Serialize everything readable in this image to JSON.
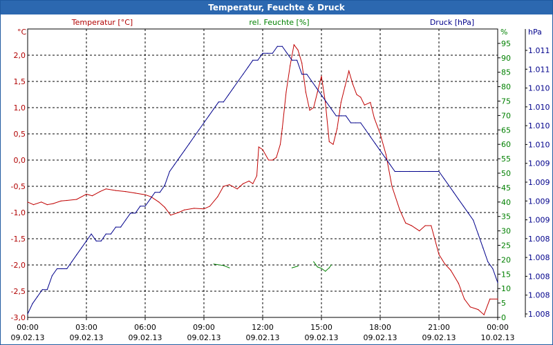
{
  "chart_data": {
    "type": "line",
    "title": "Temperatur, Feuchte & Druck",
    "axes": {
      "left": {
        "unit": "°C",
        "label": "Temperatur [°C]",
        "color": "#b00000",
        "range": [
          -3.0,
          2.5
        ],
        "ticks": [
          "2,0",
          "1,5",
          "1,0",
          "0,5",
          "0,0",
          "-0,5",
          "-1,0",
          "-1,5",
          "-2,0",
          "-2,5",
          "-3,0"
        ]
      },
      "mid": {
        "unit": "%",
        "label": "rel. Feuchte [%]",
        "color": "#008000",
        "range": [
          0,
          100
        ],
        "ticks": [
          "95",
          "90",
          "85",
          "80",
          "75",
          "70",
          "65",
          "60",
          "55",
          "50",
          "45",
          "40",
          "35",
          "30",
          "25",
          "20",
          "15",
          "10",
          "5",
          "0"
        ]
      },
      "right": {
        "unit": "hPa",
        "label": "Druck [hPa]",
        "color": "#00008b",
        "ticks": [
          "1.011",
          "1.011",
          "1.010",
          "1.010",
          "1.010",
          "1.010",
          "1.009",
          "1.009",
          "1.009",
          "1.009",
          "1.008",
          "1.008",
          "1.008",
          "1.008",
          "1.008"
        ]
      }
    },
    "x_ticks": [
      {
        "time": "00:00",
        "date": "09.02.13"
      },
      {
        "time": "03:00",
        "date": "09.02.13"
      },
      {
        "time": "06:00",
        "date": "09.02.13"
      },
      {
        "time": "09:00",
        "date": "09.02.13"
      },
      {
        "time": "12:00",
        "date": "09.02.13"
      },
      {
        "time": "15:00",
        "date": "09.02.13"
      },
      {
        "time": "18:00",
        "date": "09.02.13"
      },
      {
        "time": "21:00",
        "date": "09.02.13"
      },
      {
        "time": "00:00",
        "date": "10.02.13"
      }
    ],
    "x_range_hours": [
      0,
      24
    ],
    "grid": true,
    "series": [
      {
        "name": "Temperatur",
        "color": "#c00000",
        "unit": "°C",
        "x": [
          0,
          0.3,
          0.7,
          1.0,
          1.3,
          1.7,
          2.0,
          2.5,
          3.0,
          3.3,
          3.7,
          4.0,
          4.5,
          5.0,
          5.5,
          6.0,
          6.3,
          6.7,
          7.0,
          7.3,
          7.7,
          8.0,
          8.5,
          9.0,
          9.3,
          9.7,
          10.0,
          10.3,
          10.7,
          11.0,
          11.3,
          11.5,
          11.7,
          11.8,
          12.0,
          12.3,
          12.5,
          12.7,
          12.9,
          13.0,
          13.2,
          13.4,
          13.6,
          13.8,
          14.0,
          14.2,
          14.4,
          14.6,
          14.8,
          15.0,
          15.2,
          15.4,
          15.6,
          15.8,
          16.0,
          16.2,
          16.4,
          16.6,
          16.8,
          17.0,
          17.2,
          17.5,
          17.7,
          18.0,
          18.3,
          18.6,
          19.0,
          19.3,
          19.6,
          20.0,
          20.3,
          20.6,
          21.0,
          21.3,
          21.6,
          22.0,
          22.3,
          22.6,
          23.0,
          23.3,
          23.6,
          24.0
        ],
        "values": [
          -0.8,
          -0.85,
          -0.8,
          -0.85,
          -0.83,
          -0.78,
          -0.77,
          -0.75,
          -0.65,
          -0.68,
          -0.6,
          -0.55,
          -0.58,
          -0.6,
          -0.63,
          -0.66,
          -0.7,
          -0.8,
          -0.9,
          -1.05,
          -1.0,
          -0.95,
          -0.92,
          -0.93,
          -0.88,
          -0.7,
          -0.5,
          -0.47,
          -0.55,
          -0.45,
          -0.4,
          -0.45,
          -0.3,
          0.25,
          0.2,
          0.0,
          0.0,
          0.05,
          0.3,
          0.6,
          1.3,
          1.8,
          2.2,
          2.1,
          1.85,
          1.3,
          0.95,
          1.0,
          1.3,
          1.6,
          1.1,
          0.35,
          0.3,
          0.6,
          1.1,
          1.4,
          1.7,
          1.45,
          1.25,
          1.2,
          1.05,
          1.1,
          0.8,
          0.5,
          0.1,
          -0.5,
          -0.95,
          -1.2,
          -1.25,
          -1.35,
          -1.25,
          -1.25,
          -1.8,
          -1.98,
          -2.1,
          -2.35,
          -2.65,
          -2.8,
          -2.85,
          -2.95,
          -2.65,
          -2.65
        ]
      },
      {
        "name": "rel. Feuchte",
        "color": "#008000",
        "unit": "%",
        "segments": [
          {
            "x": [
              9.5,
              10.0,
              10.3
            ],
            "values": [
              18.5,
              18.0,
              17.2
            ]
          },
          {
            "x": [
              13.5,
              13.8
            ],
            "values": [
              17.2,
              17.8
            ]
          },
          {
            "x": [
              14.6,
              14.8,
              15.0,
              15.2,
              15.4,
              15.5
            ],
            "values": [
              19.3,
              17.5,
              17.0,
              16.0,
              17.2,
              18.2
            ]
          }
        ]
      },
      {
        "name": "Druck",
        "color": "#00008b",
        "unit": "hPa",
        "x": [
          0,
          0.25,
          0.5,
          0.75,
          1.0,
          1.25,
          1.5,
          1.75,
          2.0,
          2.25,
          2.5,
          2.75,
          3.0,
          3.25,
          3.5,
          3.75,
          4.0,
          4.25,
          4.5,
          4.75,
          5.0,
          5.25,
          5.5,
          5.75,
          6.0,
          6.25,
          6.5,
          6.75,
          7.0,
          7.25,
          7.5,
          7.75,
          8.0,
          8.25,
          8.5,
          8.75,
          9.0,
          9.25,
          9.5,
          9.75,
          10.0,
          10.25,
          10.5,
          10.75,
          11.0,
          11.25,
          11.5,
          11.75,
          12.0,
          12.25,
          12.5,
          12.75,
          13.0,
          13.25,
          13.5,
          13.75,
          14.0,
          14.25,
          14.5,
          14.75,
          15.0,
          15.25,
          15.5,
          15.75,
          16.0,
          16.25,
          16.5,
          16.75,
          17.0,
          17.25,
          17.5,
          17.75,
          18.0,
          18.25,
          18.5,
          18.75,
          19.0,
          19.5,
          20.0,
          20.5,
          21.0,
          21.25,
          21.5,
          21.75,
          22.0,
          22.25,
          22.5,
          22.75,
          23.0,
          23.25,
          23.5,
          23.75,
          24.0
        ],
        "values": [
          1.00755,
          1.0077,
          1.0078,
          1.0079,
          1.0079,
          1.0081,
          1.0082,
          1.0082,
          1.0082,
          1.0083,
          1.0084,
          1.0085,
          1.0086,
          1.0087,
          1.0086,
          1.0086,
          1.0087,
          1.0087,
          1.0088,
          1.0088,
          1.0089,
          1.009,
          1.009,
          1.0091,
          1.0091,
          1.0092,
          1.0093,
          1.0093,
          1.0094,
          1.0096,
          1.0097,
          1.0098,
          1.0099,
          1.01,
          1.0101,
          1.0102,
          1.0103,
          1.0104,
          1.0105,
          1.0106,
          1.0106,
          1.0107,
          1.0108,
          1.0109,
          1.011,
          1.0111,
          1.0112,
          1.0112,
          1.0113,
          1.0113,
          1.0113,
          1.0114,
          1.0114,
          1.0113,
          1.0112,
          1.0112,
          1.011,
          1.011,
          1.0109,
          1.0108,
          1.0107,
          1.0106,
          1.0105,
          1.0104,
          1.0104,
          1.0104,
          1.0103,
          1.0103,
          1.0103,
          1.0102,
          1.0101,
          1.01,
          1.0099,
          1.0098,
          1.0097,
          1.0096,
          1.0096,
          1.0096,
          1.0096,
          1.0096,
          1.0096,
          1.0095,
          1.0094,
          1.0093,
          1.0092,
          1.0091,
          1.009,
          1.0089,
          1.0087,
          1.0085,
          1.0083,
          1.0082,
          1.008
        ]
      }
    ],
    "pressure_range": [
      1.0075,
      1.01165
    ]
  }
}
